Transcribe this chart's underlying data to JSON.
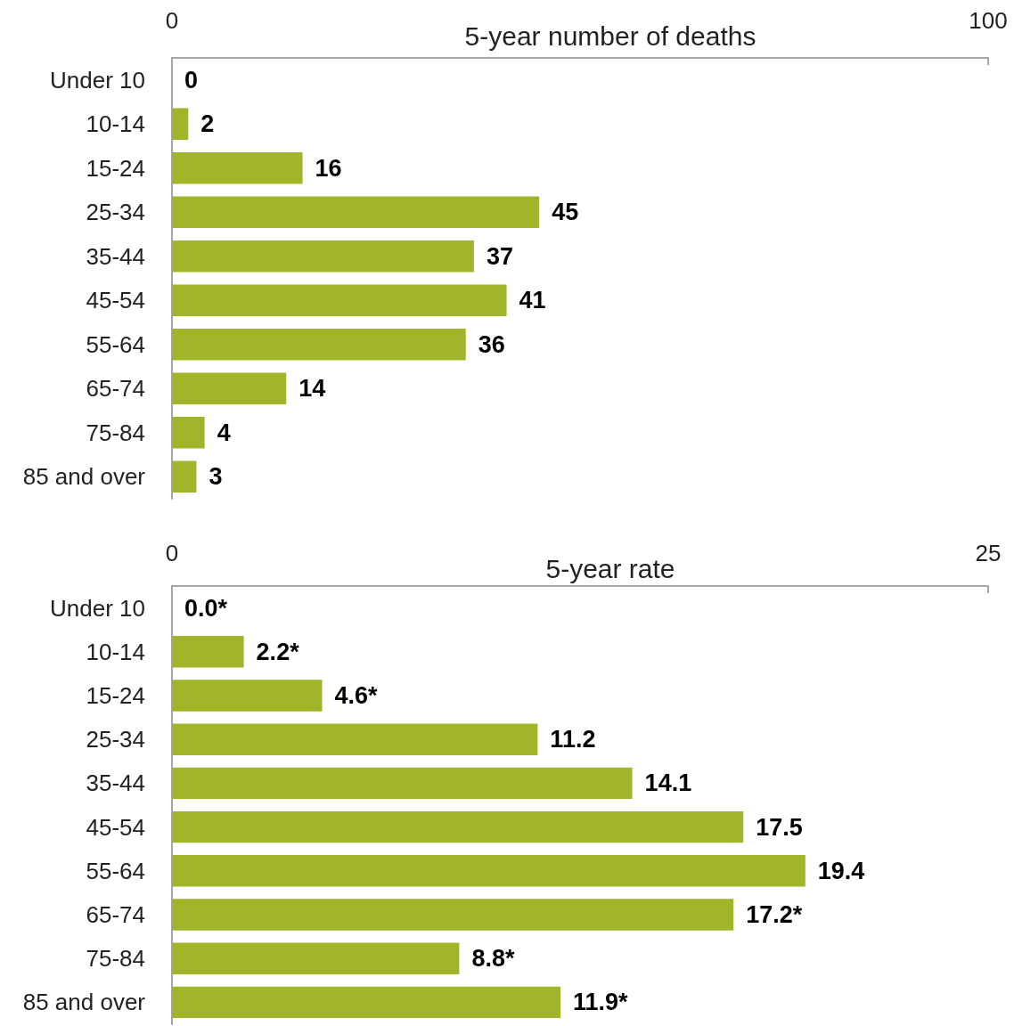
{
  "chart_data": [
    {
      "type": "bar",
      "orientation": "horizontal",
      "title": "5-year number of deaths",
      "categories": [
        "Under 10",
        "10-14",
        "15-24",
        "25-34",
        "35-44",
        "45-54",
        "55-64",
        "65-74",
        "75-84",
        "85 and over"
      ],
      "values": [
        0,
        2,
        16,
        45,
        37,
        41,
        36,
        14,
        4,
        3
      ],
      "color": "#a2b52a",
      "xlim": [
        0,
        100
      ],
      "xticks": [
        0,
        100
      ],
      "grid": false,
      "data_labels": true
    },
    {
      "type": "bar",
      "orientation": "horizontal",
      "title": "5-year rate",
      "categories": [
        "Under 10",
        "10-14",
        "15-24",
        "25-34",
        "35-44",
        "45-54",
        "55-64",
        "65-74",
        "75-84",
        "85 and over"
      ],
      "values": [
        0,
        2.2,
        4.6,
        11.2,
        14.1,
        17.5,
        19.4,
        17.2,
        8.8,
        11.9
      ],
      "color": "#a2b52a",
      "xlim": [
        0,
        25
      ],
      "xticks": [
        0,
        25
      ],
      "grid": false,
      "value_labels": [
        "0.0*",
        "2.2*",
        "4.6*",
        "11.2",
        "14.1",
        "17.5",
        "19.4",
        "17.2*",
        "8.8*",
        "11.9*"
      ]
    }
  ]
}
